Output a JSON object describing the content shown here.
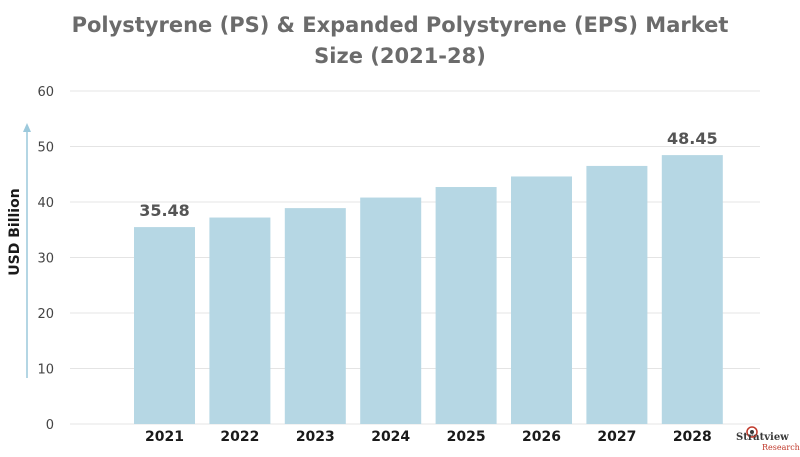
{
  "title_line1": "Polystyrene (PS) & Expanded Polystyrene (EPS) Market",
  "title_line2": "Size (2021-28)",
  "logo": {
    "name": "Stratview",
    "sub": "Research"
  },
  "colors": {
    "bar": "#b6d7e4",
    "grid": "#e4e4e4",
    "axis_arrow": "#9cc9dc",
    "title": "#6b6b6b"
  },
  "chart_data": {
    "type": "bar",
    "title": "Polystyrene (PS) & Expanded Polystyrene (EPS) Market Size (2021-28)",
    "xlabel": "",
    "ylabel": "USD Billion",
    "categories": [
      "2021",
      "2022",
      "2023",
      "2024",
      "2025",
      "2026",
      "2027",
      "2028"
    ],
    "values": [
      35.48,
      37.2,
      38.9,
      40.8,
      42.7,
      44.6,
      46.5,
      48.45
    ],
    "data_labels": [
      {
        "index": 0,
        "text": "35.48"
      },
      {
        "index": 7,
        "text": "48.45"
      }
    ],
    "ylim": [
      0,
      60
    ],
    "yticks": [
      "0",
      "10",
      "20",
      "30",
      "40",
      "50",
      "60"
    ],
    "grid": true,
    "legend": "none"
  }
}
